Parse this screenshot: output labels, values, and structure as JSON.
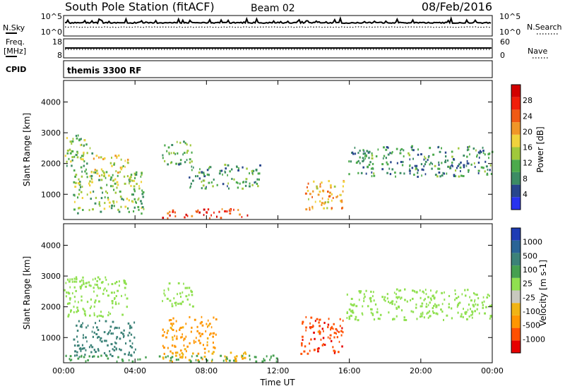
{
  "header": {
    "station": "South Pole Station (fitACF)",
    "beam": "Beam 02",
    "date": "08/Feb/2016"
  },
  "nsky_panel": {
    "left_label": "N.Sky",
    "right_label": "N.Search",
    "ticks_left": [
      "10^5",
      "10^0"
    ],
    "ticks_right": [
      "10^5",
      "10^0"
    ]
  },
  "freq_panel": {
    "left_label_line1": "Freq.",
    "left_label_line2": "[MHz]",
    "left_ticks": [
      "18",
      "8"
    ],
    "right_ticks": [
      "60",
      "0"
    ],
    "right_label": "Nave",
    "freq_value_mhz": 12.5
  },
  "cpid_panel": {
    "label": "CPID",
    "mode": "themis 3300 RF"
  },
  "axes": {
    "xlabel": "Time UT",
    "ylabel": "Slant Range [km]",
    "xticks": [
      "00:00",
      "04:00",
      "08:00",
      "12:00",
      "16:00",
      "20:00",
      "00:00"
    ],
    "xtick_hours": [
      0,
      4,
      8,
      12,
      16,
      20,
      24
    ],
    "xlim_hours": [
      0,
      24
    ],
    "yticks": [
      1000,
      2000,
      3000,
      4000
    ],
    "ylim_km": [
      180,
      4700
    ]
  },
  "colors": {
    "power": [
      "#2832f0",
      "#28468c",
      "#3c8c64",
      "#4caa4c",
      "#a0c83c",
      "#f0d23c",
      "#f09628",
      "#f05a14",
      "#f01e0a",
      "#d20000"
    ],
    "velocity": [
      "#e60000",
      "#ff5000",
      "#ff9600",
      "#f0b414",
      "#c8c8be",
      "#90e050",
      "#46a050",
      "#3c8278",
      "#2a6496",
      "#1e3cb4"
    ]
  },
  "chart_data": [
    {
      "type": "heatmap",
      "title": "",
      "xlabel": "Time UT",
      "ylabel": "Slant Range [km]",
      "colorbar_label": "Power [dB]",
      "colorbar_ticks": [
        "4",
        "8",
        "12",
        "16",
        "20",
        "24",
        "28"
      ],
      "scale": [
        0,
        32
      ],
      "regions": [
        {
          "t": [
            0.0,
            1.6
          ],
          "r": [
            1800,
            3000
          ],
          "level": 12
        },
        {
          "t": [
            1.6,
            3.6
          ],
          "r": [
            1600,
            2300
          ],
          "level": 17
        },
        {
          "t": [
            5.5,
            7.2
          ],
          "r": [
            2000,
            2800
          ],
          "level": 11
        },
        {
          "t": [
            7.0,
            11.0
          ],
          "r": [
            1200,
            2000
          ],
          "level": 10
        },
        {
          "t": [
            13.5,
            15.7
          ],
          "r": [
            500,
            1500
          ],
          "level": 19
        },
        {
          "t": [
            15.8,
            24.0
          ],
          "r": [
            1600,
            2600
          ],
          "level": 9
        },
        {
          "t": [
            5.5,
            10.5
          ],
          "r": [
            250,
            550
          ],
          "level": 25
        },
        {
          "t": [
            0.5,
            4.5
          ],
          "r": [
            400,
            1800
          ],
          "level": 13
        }
      ]
    },
    {
      "type": "heatmap",
      "title": "",
      "xlabel": "Time UT",
      "ylabel": "Slant Range [km]",
      "colorbar_label": "Velocity [m s-1]",
      "colorbar_ticks": [
        "1000",
        "500",
        "100",
        "25",
        "-25",
        "-100",
        "-500",
        "-1000"
      ],
      "scale": [
        -1200,
        1200
      ],
      "regions": [
        {
          "t": [
            0.0,
            3.6
          ],
          "r": [
            1700,
            3000
          ],
          "velocity": 0
        },
        {
          "t": [
            5.5,
            7.2
          ],
          "r": [
            2000,
            2800
          ],
          "velocity": 0
        },
        {
          "t": [
            0.5,
            4.0
          ],
          "r": [
            400,
            1600
          ],
          "velocity": 300
        },
        {
          "t": [
            5.5,
            8.5
          ],
          "r": [
            500,
            1700
          ],
          "velocity": -150
        },
        {
          "t": [
            13.2,
            15.7
          ],
          "r": [
            500,
            1700
          ],
          "velocity": -800
        },
        {
          "t": [
            15.8,
            24.0
          ],
          "r": [
            1600,
            2600
          ],
          "velocity": 0
        },
        {
          "t": [
            5.5,
            10.5
          ],
          "r": [
            250,
            550
          ],
          "velocity": -80
        },
        {
          "t": [
            0.0,
            12.0
          ],
          "r": [
            250,
            450
          ],
          "velocity": 60
        }
      ]
    }
  ]
}
